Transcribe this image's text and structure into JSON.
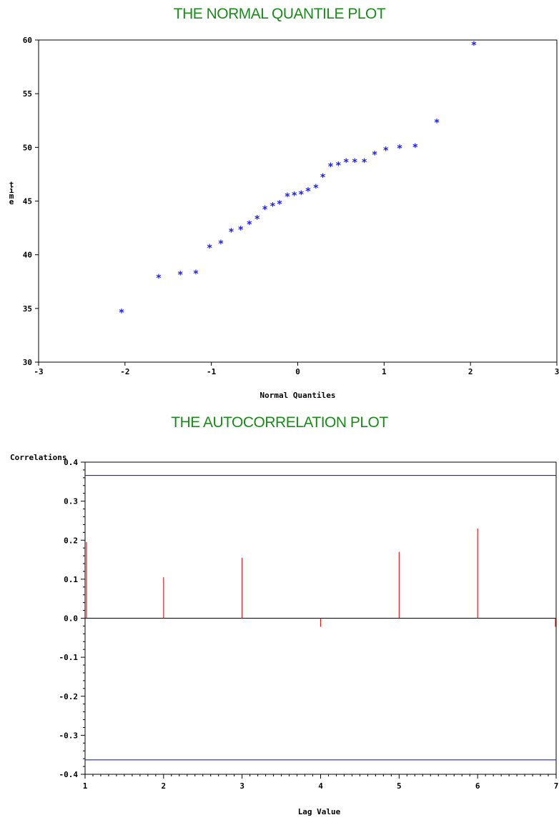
{
  "chart_data": [
    {
      "type": "scatter",
      "title": "THE NORMAL QUANTILE PLOT",
      "xlabel": "Normal Quantiles",
      "ylabel": "time",
      "xlim": [
        -3,
        3
      ],
      "ylim": [
        30,
        60
      ],
      "xticks": [
        "-3",
        "-2",
        "-1",
        "0",
        "1",
        "2",
        "3"
      ],
      "yticks": [
        "30",
        "35",
        "40",
        "45",
        "50",
        "55",
        "60"
      ],
      "marker": "*",
      "color": "#1a1aff",
      "x": [
        -2.04,
        -1.61,
        -1.36,
        -1.18,
        -1.02,
        -0.89,
        -0.77,
        -0.66,
        -0.56,
        -0.47,
        -0.38,
        -0.29,
        -0.21,
        -0.12,
        -0.04,
        0.04,
        0.12,
        0.21,
        0.29,
        0.38,
        0.47,
        0.56,
        0.66,
        0.77,
        0.89,
        1.02,
        1.18,
        1.36,
        1.61,
        2.04
      ],
      "y": [
        34.7,
        37.9,
        38.2,
        38.3,
        40.7,
        41.1,
        42.2,
        42.4,
        42.9,
        43.4,
        44.3,
        44.6,
        44.8,
        45.5,
        45.6,
        45.7,
        46.0,
        46.3,
        47.3,
        48.3,
        48.4,
        48.7,
        48.7,
        48.7,
        49.4,
        49.8,
        50.0,
        50.1,
        52.4,
        59.6
      ]
    },
    {
      "type": "bar",
      "title": "THE AUTOCORRELATION PLOT",
      "xlabel": "Lag Value",
      "ylabel": "Correlations",
      "xlim": [
        1,
        7
      ],
      "ylim": [
        -0.4,
        0.4
      ],
      "xticks": [
        "1",
        "2",
        "3",
        "4",
        "5",
        "6",
        "7"
      ],
      "yticks": [
        "-0.4",
        "-0.3",
        "-0.2",
        "-0.1",
        "0.0",
        "0.1",
        "0.2",
        "0.3",
        "0.4"
      ],
      "lags": [
        1,
        2,
        3,
        4,
        5,
        6,
        7
      ],
      "values": [
        0.195,
        0.105,
        0.155,
        -0.022,
        0.17,
        0.23,
        -0.022
      ],
      "bar_color": "#dd2222",
      "bound_color": "#1a1aff",
      "bounds": [
        0.366,
        -0.363
      ]
    }
  ]
}
